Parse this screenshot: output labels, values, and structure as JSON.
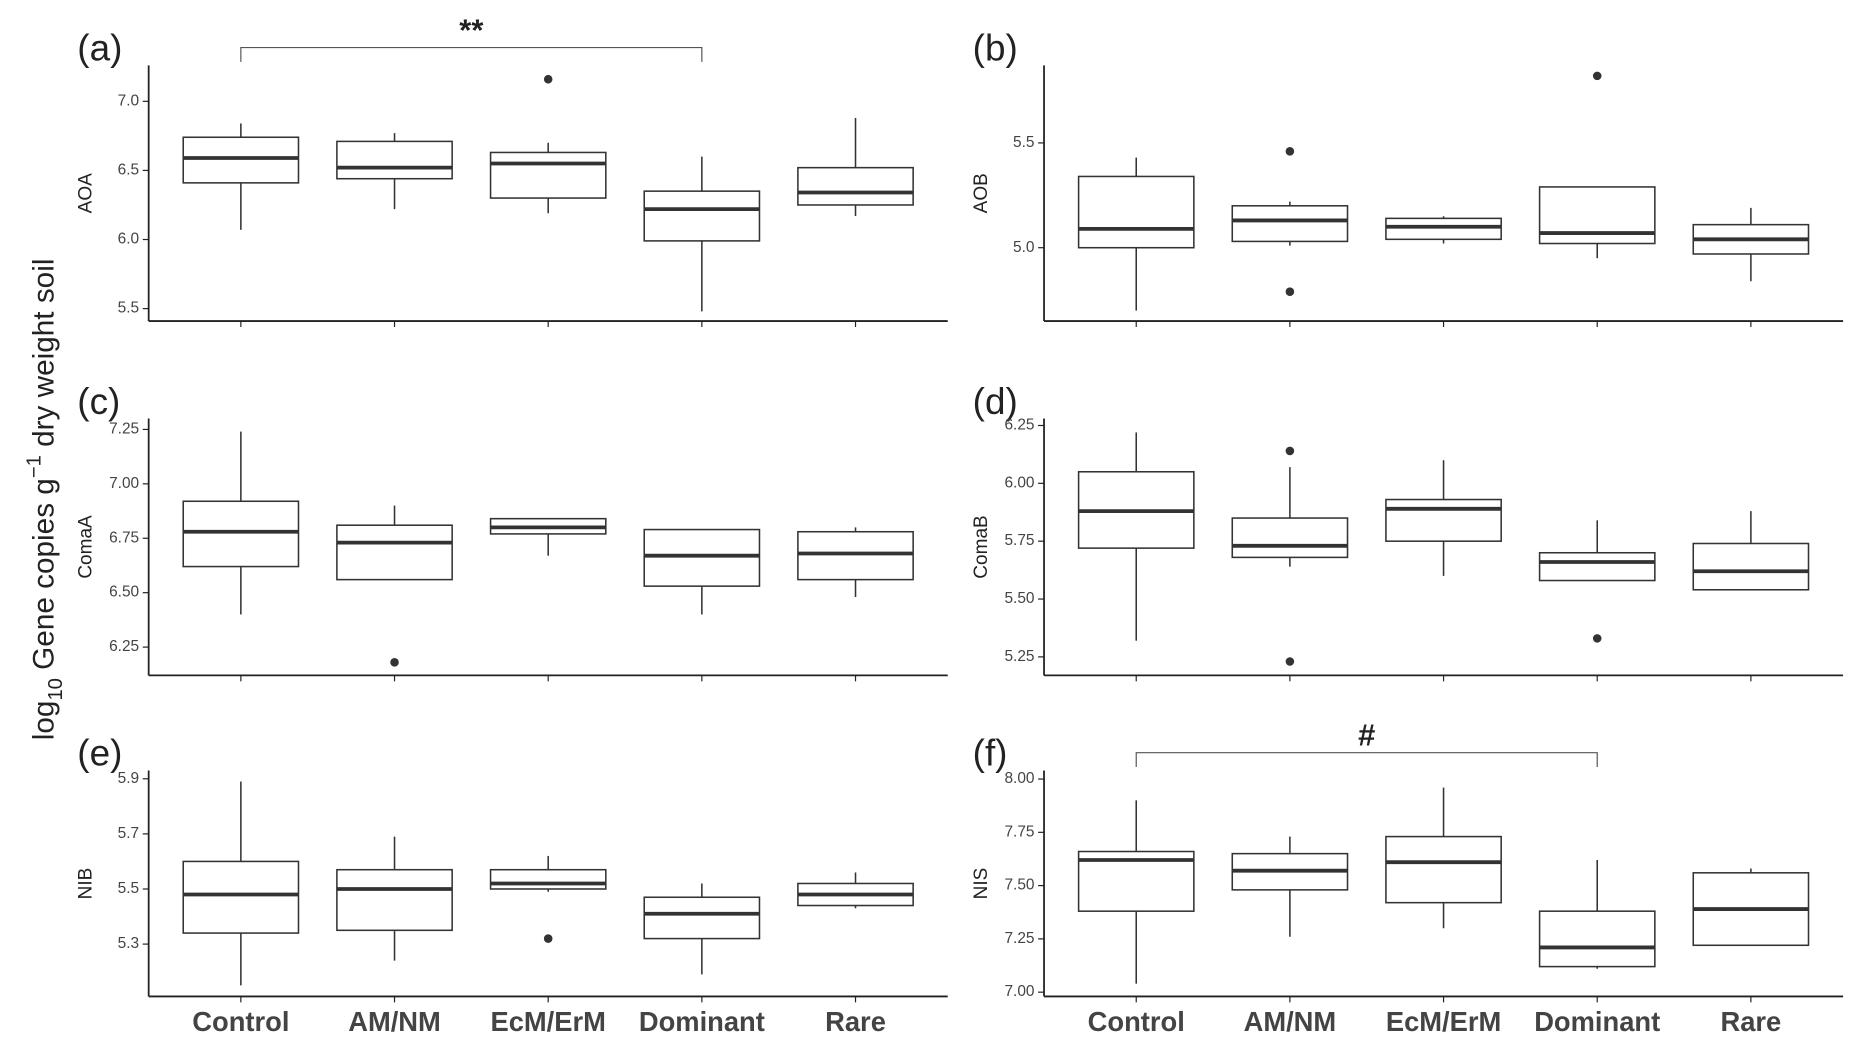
{
  "ylabel": {
    "base": "log",
    "sub": "10",
    "main": " Gene copies g",
    "sup": "−1",
    "rest": " dry weight soil"
  },
  "chart_data": [
    {
      "type": "box",
      "label": "(a)",
      "ylabel": "AOA",
      "categories": [
        "Control",
        "AM/NM",
        "EcM/ErM",
        "Dominant",
        "Rare"
      ],
      "ylim": [
        5.41,
        7.26
      ],
      "yticks": [
        {
          "value": 5.5,
          "label": "5.5"
        },
        {
          "value": 6.0,
          "label": "6.0"
        },
        {
          "value": 6.5,
          "label": "6.5"
        },
        {
          "value": 7.0,
          "label": "7.0"
        }
      ],
      "boxes": [
        {
          "low": 6.07,
          "q1": 6.41,
          "median": 6.59,
          "q3": 6.74,
          "high": 6.84,
          "outliers": []
        },
        {
          "low": 6.22,
          "q1": 6.44,
          "median": 6.52,
          "q3": 6.71,
          "high": 6.77,
          "outliers": []
        },
        {
          "low": 6.19,
          "q1": 6.3,
          "median": 6.55,
          "q3": 6.63,
          "high": 6.7,
          "outliers": [
            7.16
          ]
        },
        {
          "low": 5.48,
          "q1": 5.99,
          "median": 6.22,
          "q3": 6.35,
          "high": 6.6,
          "outliers": []
        },
        {
          "low": 6.17,
          "q1": 6.25,
          "median": 6.34,
          "q3": 6.52,
          "high": 6.88,
          "outliers": []
        }
      ],
      "bracket": {
        "label": "**",
        "categories": [
          "Control",
          "Dominant"
        ]
      }
    },
    {
      "type": "box",
      "label": "(b)",
      "ylabel": "AOB",
      "categories": [
        "Control",
        "AM/NM",
        "EcM/ErM",
        "Dominant",
        "Rare"
      ],
      "ylim": [
        4.65,
        5.87
      ],
      "yticks": [
        {
          "value": 5.0,
          "label": "5.0"
        },
        5.5
      ],
      "boxes": [
        {
          "low": 4.7,
          "q1": 5.0,
          "median": 5.09,
          "q3": 5.34,
          "high": 5.43,
          "outliers": []
        },
        {
          "low": 5.01,
          "q1": 5.03,
          "median": 5.13,
          "q3": 5.2,
          "high": 5.22,
          "outliers": [
            5.46,
            4.79
          ]
        },
        {
          "low": 5.02,
          "q1": 5.04,
          "median": 5.1,
          "q3": 5.14,
          "high": 5.15,
          "outliers": []
        },
        {
          "low": 4.95,
          "q1": 5.02,
          "median": 5.07,
          "q3": 5.29,
          "high": 5.29,
          "outliers": [
            5.82
          ]
        },
        {
          "low": 4.84,
          "q1": 4.97,
          "median": 5.04,
          "q3": 5.11,
          "high": 5.19,
          "outliers": []
        }
      ]
    },
    {
      "type": "box",
      "label": "(c)",
      "ylabel": "ComaA",
      "categories": [
        "Control",
        "AM/NM",
        "EcM/ErM",
        "Dominant",
        "Rare"
      ],
      "ylim": [
        6.12,
        7.3
      ],
      "yticks": [
        6.25,
        {
          "value": 6.5,
          "label": "6.50"
        },
        6.75,
        {
          "value": 7.0,
          "label": "7.00"
        },
        7.25
      ],
      "boxes": [
        {
          "low": 6.4,
          "q1": 6.62,
          "median": 6.78,
          "q3": 6.92,
          "high": 7.24,
          "outliers": []
        },
        {
          "low": 6.56,
          "q1": 6.56,
          "median": 6.73,
          "q3": 6.81,
          "high": 6.9,
          "outliers": [
            6.18
          ]
        },
        {
          "low": 6.67,
          "q1": 6.77,
          "median": 6.8,
          "q3": 6.84,
          "high": 6.84,
          "outliers": []
        },
        {
          "low": 6.4,
          "q1": 6.53,
          "median": 6.67,
          "q3": 6.79,
          "high": 6.79,
          "outliers": []
        },
        {
          "low": 6.48,
          "q1": 6.56,
          "median": 6.68,
          "q3": 6.78,
          "high": 6.8,
          "outliers": []
        }
      ]
    },
    {
      "type": "box",
      "label": "(d)",
      "ylabel": "ComaB",
      "categories": [
        "Control",
        "AM/NM",
        "EcM/ErM",
        "Dominant",
        "Rare"
      ],
      "ylim": [
        5.17,
        6.28
      ],
      "yticks": [
        5.25,
        {
          "value": 5.5,
          "label": "5.50"
        },
        5.75,
        {
          "value": 6.0,
          "label": "6.00"
        },
        6.25
      ],
      "boxes": [
        {
          "low": 5.32,
          "q1": 5.72,
          "median": 5.88,
          "q3": 6.05,
          "high": 6.22,
          "outliers": []
        },
        {
          "low": 5.64,
          "q1": 5.68,
          "median": 5.73,
          "q3": 5.85,
          "high": 6.07,
          "outliers": [
            6.14,
            5.23
          ]
        },
        {
          "low": 5.6,
          "q1": 5.75,
          "median": 5.89,
          "q3": 5.93,
          "high": 6.1,
          "outliers": []
        },
        {
          "low": 5.58,
          "q1": 5.58,
          "median": 5.66,
          "q3": 5.7,
          "high": 5.84,
          "outliers": [
            5.33
          ]
        },
        {
          "low": 5.54,
          "q1": 5.54,
          "median": 5.62,
          "q3": 5.74,
          "high": 5.88,
          "outliers": []
        }
      ]
    },
    {
      "type": "box",
      "label": "(e)",
      "ylabel": "NIB",
      "categories": [
        "Control",
        "AM/NM",
        "EcM/ErM",
        "Dominant",
        "Rare"
      ],
      "ylim": [
        5.11,
        5.93
      ],
      "yticks": [
        5.3,
        5.5,
        5.7,
        5.9
      ],
      "boxes": [
        {
          "low": 5.15,
          "q1": 5.34,
          "median": 5.48,
          "q3": 5.6,
          "high": 5.89,
          "outliers": []
        },
        {
          "low": 5.24,
          "q1": 5.35,
          "median": 5.5,
          "q3": 5.57,
          "high": 5.69,
          "outliers": []
        },
        {
          "low": 5.49,
          "q1": 5.5,
          "median": 5.52,
          "q3": 5.57,
          "high": 5.62,
          "outliers": [
            5.32
          ]
        },
        {
          "low": 5.19,
          "q1": 5.32,
          "median": 5.41,
          "q3": 5.47,
          "high": 5.52,
          "outliers": []
        },
        {
          "low": 5.43,
          "q1": 5.44,
          "median": 5.48,
          "q3": 5.52,
          "high": 5.56,
          "outliers": []
        }
      ]
    },
    {
      "type": "box",
      "label": "(f)",
      "ylabel": "NIS",
      "categories": [
        "Control",
        "AM/NM",
        "EcM/ErM",
        "Dominant",
        "Rare"
      ],
      "ylim": [
        6.98,
        8.04
      ],
      "yticks": [
        {
          "value": 7.0,
          "label": "7.00"
        },
        7.25,
        {
          "value": 7.5,
          "label": "7.50"
        },
        7.75,
        {
          "value": 8.0,
          "label": "8.00"
        }
      ],
      "boxes": [
        {
          "low": 7.04,
          "q1": 7.38,
          "median": 7.62,
          "q3": 7.66,
          "high": 7.9,
          "outliers": []
        },
        {
          "low": 7.26,
          "q1": 7.48,
          "median": 7.57,
          "q3": 7.65,
          "high": 7.73,
          "outliers": []
        },
        {
          "low": 7.3,
          "q1": 7.42,
          "median": 7.61,
          "q3": 7.73,
          "high": 7.96,
          "outliers": []
        },
        {
          "low": 7.11,
          "q1": 7.12,
          "median": 7.21,
          "q3": 7.38,
          "high": 7.62,
          "outliers": []
        },
        {
          "low": 7.22,
          "q1": 7.22,
          "median": 7.39,
          "q3": 7.56,
          "high": 7.58,
          "outliers": []
        }
      ],
      "bracket": {
        "label": "#",
        "categories": [
          "Control",
          "Dominant"
        ]
      }
    }
  ]
}
